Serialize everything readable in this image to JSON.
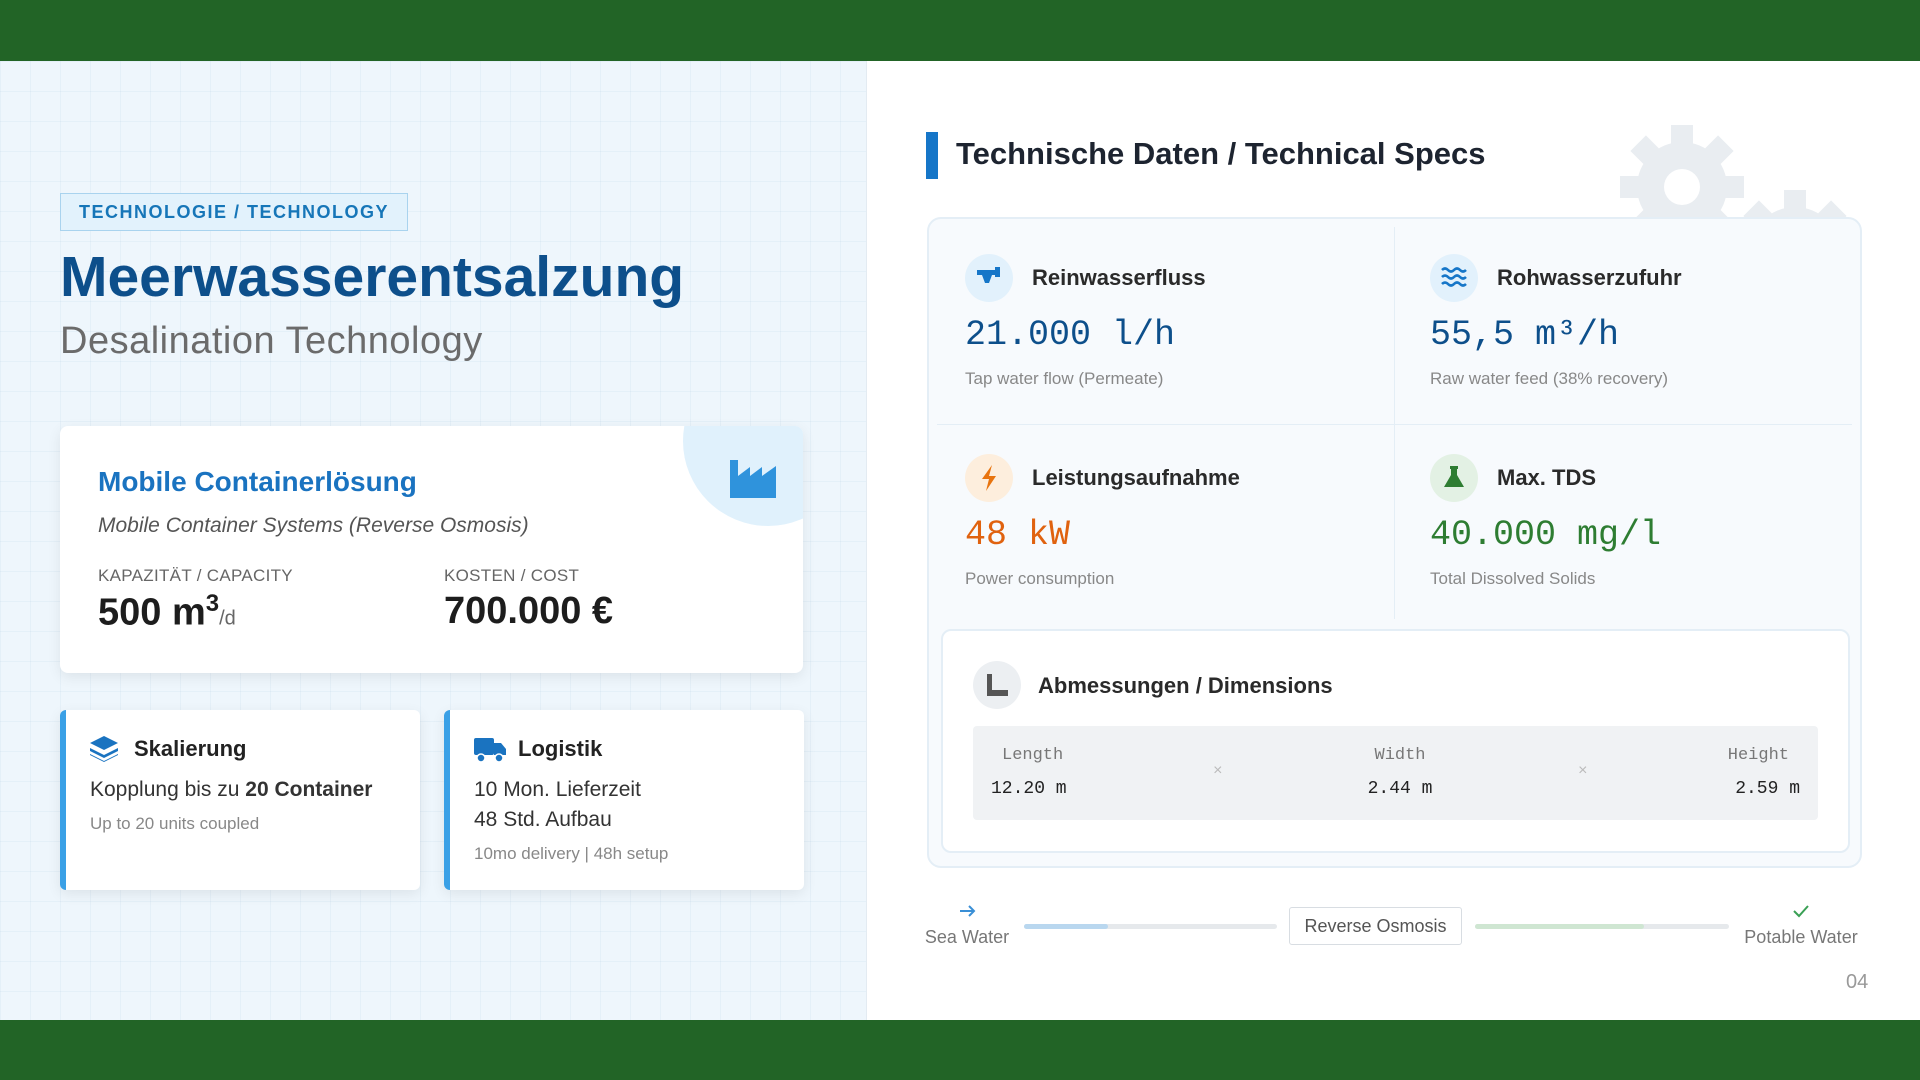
{
  "left": {
    "tag": "TECHNOLOGIE / TECHNOLOGY",
    "title": "Meerwasserentsalzung",
    "subtitle": "Desalination Technology",
    "card": {
      "title": "Mobile Containerlösung",
      "subtitle": "Mobile Container Systems (Reverse Osmosis)",
      "capacity": {
        "label": "KAPAZITÄT / CAPACITY",
        "value": "500 m",
        "sup": "3",
        "unit": "/d"
      },
      "cost": {
        "label": "KOSTEN / COST",
        "value": "700.000 €"
      }
    },
    "features": [
      {
        "title": "Skalierung",
        "text": "Kopplung bis zu ",
        "bold": "20 Container",
        "note": "Up to 20 units coupled"
      },
      {
        "title": "Logistik",
        "lines": [
          "10 Mon. Lieferzeit",
          "48 Std. Aufbau"
        ],
        "note": "10mo delivery | 48h setup"
      }
    ]
  },
  "right": {
    "heading": "Technische Daten / Technical Specs",
    "specs": [
      {
        "label": "Reinwasserfluss",
        "value": "21.000 l/h",
        "description": "Tap water flow (Permeate)"
      },
      {
        "label": "Rohwasserzufuhr",
        "value": "55,5 m³/h",
        "description": "Raw water feed (38% recovery)"
      },
      {
        "label": "Leistungsaufnahme",
        "value": "48 kW",
        "description": "Power consumption"
      },
      {
        "label": "Max. TDS",
        "value": "40.000 mg/l",
        "description": "Total Dissolved Solids"
      }
    ],
    "dimensions": {
      "title": "Abmessungen / Dimensions",
      "separator": "×",
      "items": [
        {
          "label": "Length",
          "value": "12.20 m"
        },
        {
          "label": "Width",
          "value": "2.44 m"
        },
        {
          "label": "Height",
          "value": "2.59 m"
        }
      ]
    },
    "flow": {
      "start": "Sea Water",
      "process": "Reverse Osmosis",
      "end": "Potable Water"
    },
    "page_number": "04"
  }
}
